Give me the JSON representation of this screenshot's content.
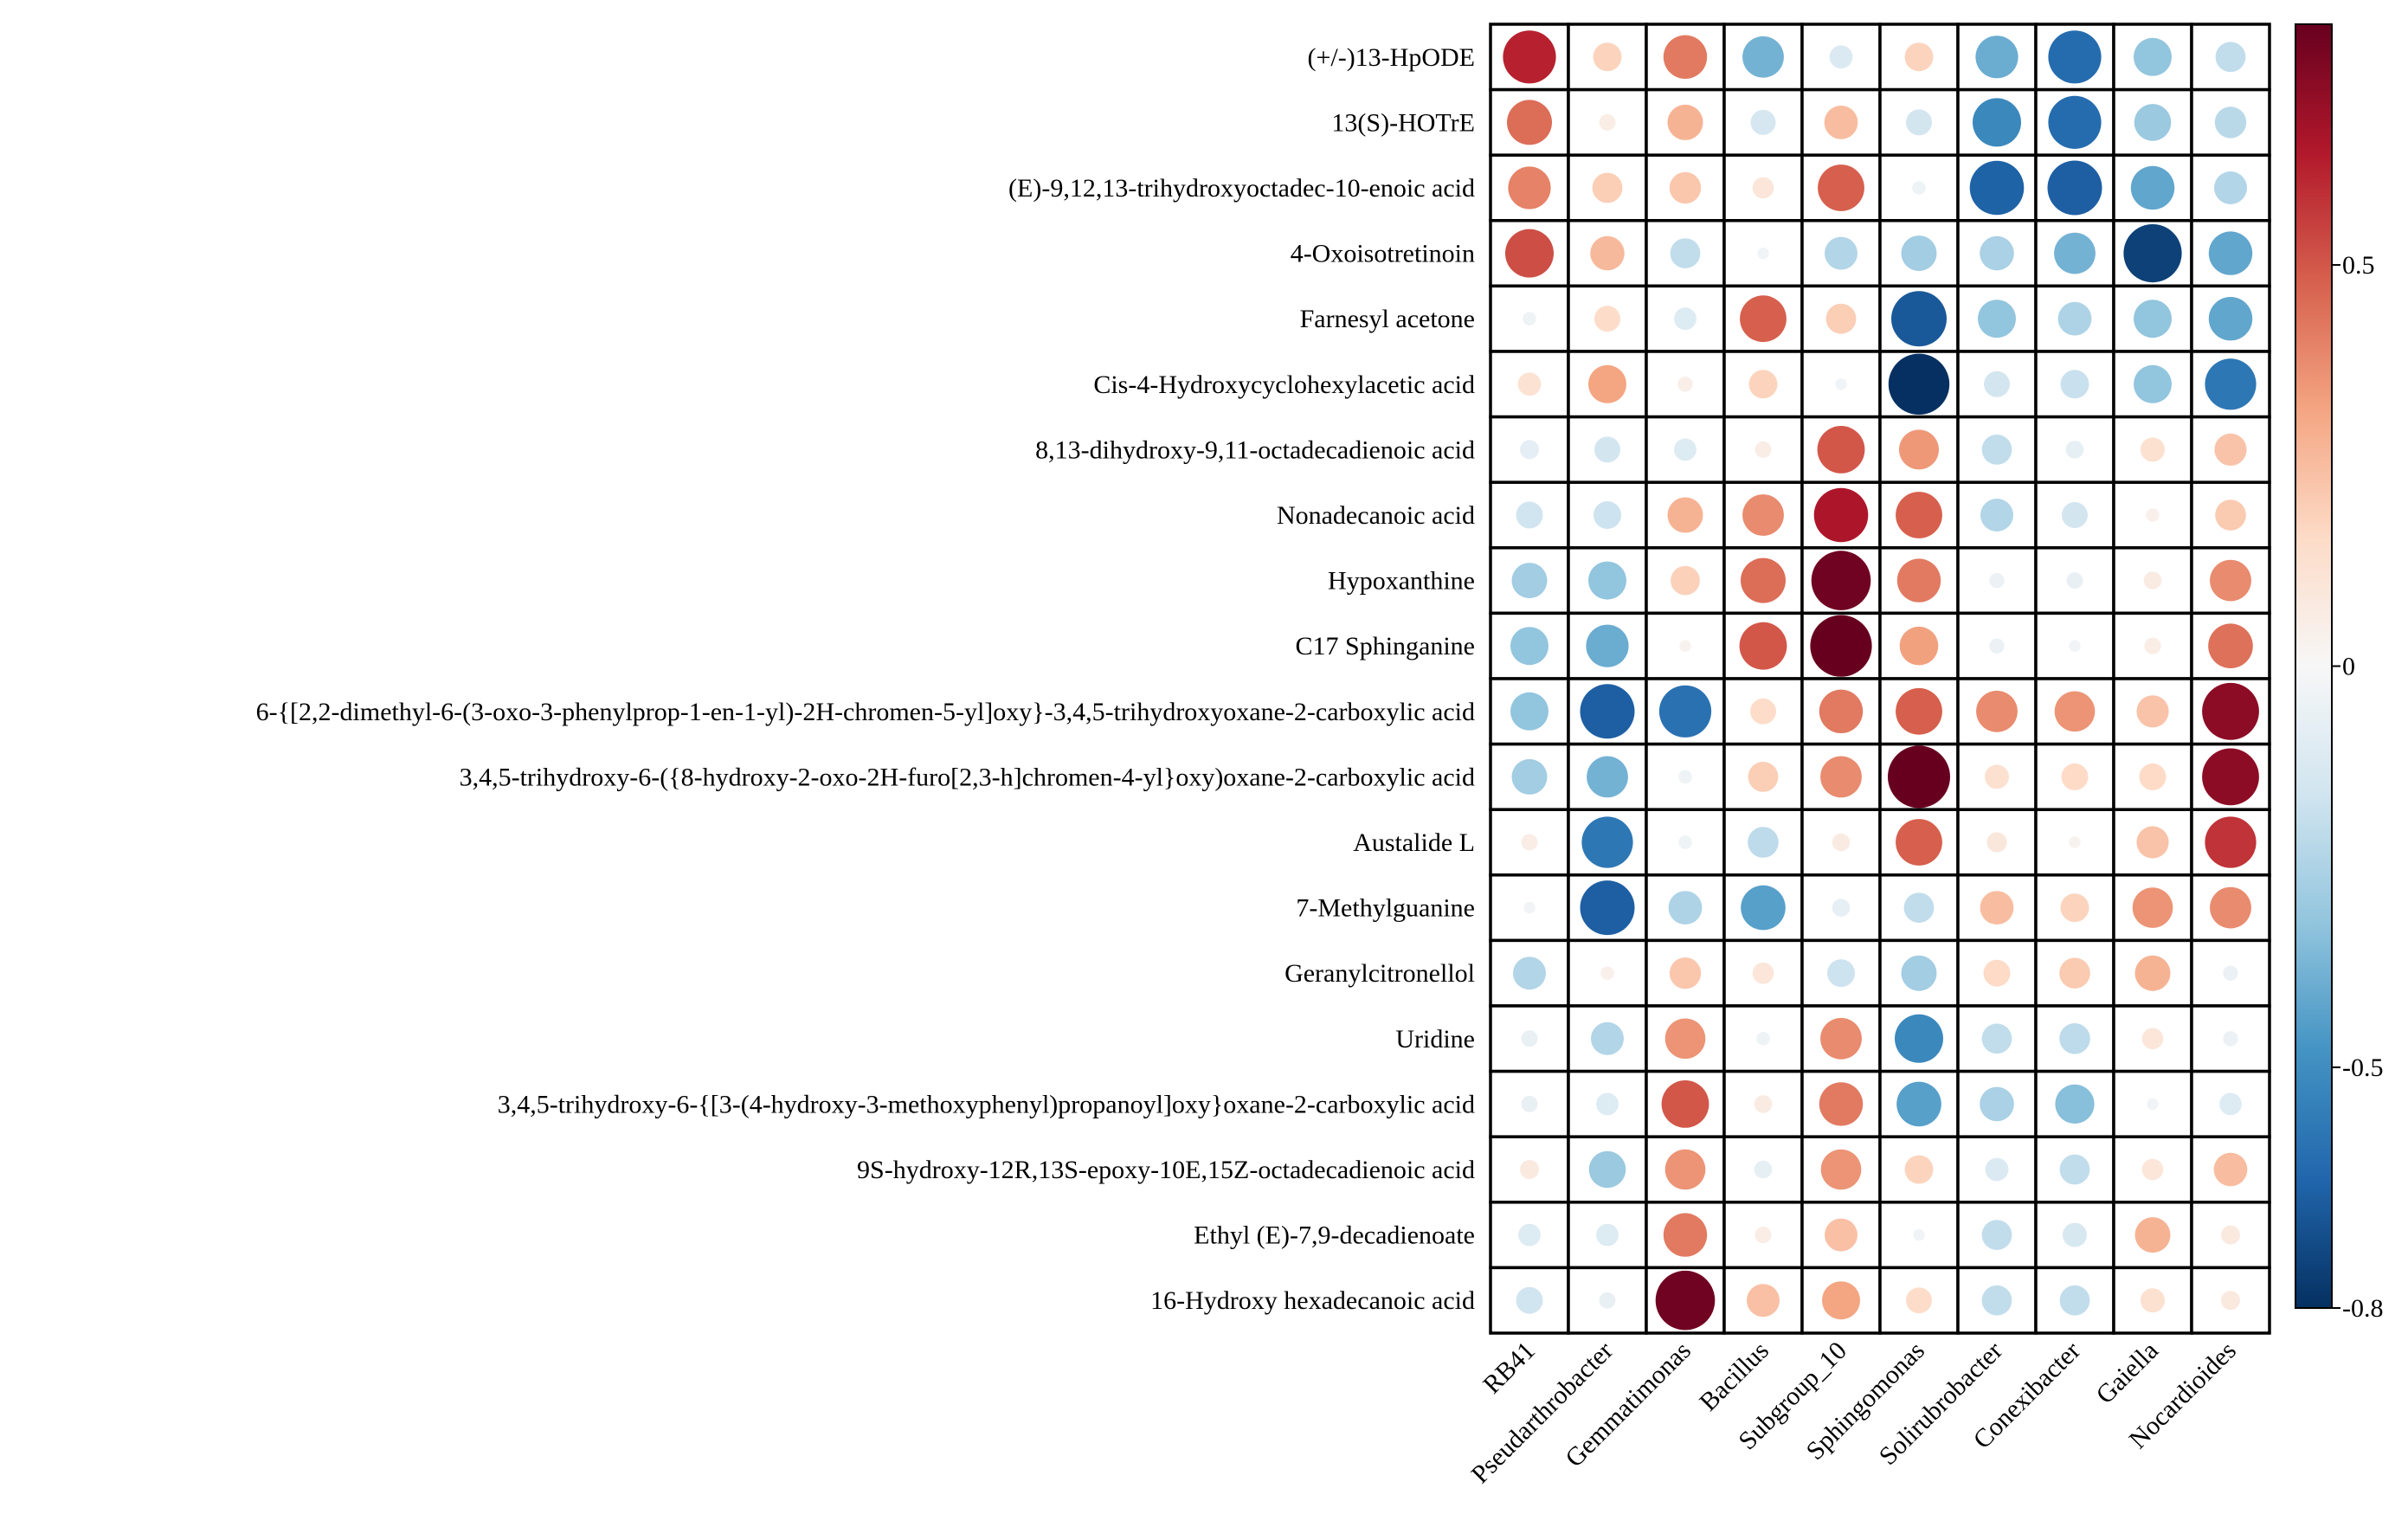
{
  "chart_data": {
    "type": "heatmap",
    "title": "",
    "xlabel": "",
    "ylabel": "",
    "marker": "circle",
    "columns": [
      "RB41",
      "Pseudarthrobacter",
      "Gemmatimonas",
      "Bacillus",
      "Subgroup_10",
      "Sphingomonas",
      "Solirubrobacter",
      "Conexibacter",
      "Gaiella",
      "Nocardioides"
    ],
    "rows": [
      "(+/-)13-HpODE",
      "13(S)-HOTrE",
      "(E)-9,12,13-trihydroxyoctadec-10-enoic acid",
      "4-Oxoisotretinoin",
      "Farnesyl acetone",
      "Cis-4-Hydroxycyclohexylacetic acid",
      "8,13-dihydroxy-9,11-octadecadienoic acid",
      "Nonadecanoic acid",
      "Hypoxanthine",
      "C17 Sphinganine",
      "6-{[2,2-dimethyl-6-(3-oxo-3-phenylprop-1-en-1-yl)-2H-chromen-5-yl]oxy}-3,4,5-trihydroxyoxane-2-carboxylic acid",
      "3,4,5-trihydroxy-6-({8-hydroxy-2-oxo-2H-furo[2,3-h]chromen-4-yl}oxy)oxane-2-carboxylic acid",
      "Austalide L",
      "7-Methylguanine",
      "Geranylcitronellol",
      "Uridine",
      "3,4,5-trihydroxy-6-{[3-(4-hydroxy-3-methoxyphenyl)propanoyl]oxy}oxane-2-carboxylic acid",
      "9S-hydroxy-12R,13S-epoxy-10E,15Z-octadecadienoic acid",
      "Ethyl (E)-7,9-decadienoate",
      "16-Hydroxy hexadecanoic acid"
    ],
    "values": [
      [
        0.62,
        0.18,
        0.42,
        -0.38,
        -0.12,
        0.18,
        -0.4,
        -0.62,
        -0.32,
        -0.2
      ],
      [
        0.45,
        0.06,
        0.28,
        -0.14,
        0.25,
        -0.15,
        -0.52,
        -0.62,
        -0.3,
        -0.22
      ],
      [
        0.4,
        0.2,
        0.22,
        0.1,
        0.48,
        -0.04,
        -0.65,
        -0.66,
        -0.42,
        -0.24
      ],
      [
        0.52,
        0.26,
        -0.2,
        -0.03,
        -0.24,
        -0.28,
        -0.26,
        -0.38,
        -0.75,
        -0.42
      ],
      [
        -0.04,
        0.15,
        -0.11,
        0.48,
        0.2,
        -0.68,
        -0.32,
        -0.25,
        -0.32,
        -0.42
      ],
      [
        0.12,
        0.32,
        0.05,
        0.18,
        -0.03,
        -0.82,
        -0.15,
        -0.18,
        -0.32,
        -0.58
      ],
      [
        -0.08,
        -0.15,
        -0.11,
        0.06,
        0.5,
        0.35,
        -0.2,
        -0.07,
        0.13,
        0.23
      ],
      [
        -0.16,
        -0.17,
        0.28,
        0.38,
        0.65,
        0.48,
        -0.24,
        -0.15,
        0.04,
        0.21
      ],
      [
        -0.28,
        -0.32,
        0.19,
        0.45,
        0.78,
        0.42,
        -0.05,
        -0.06,
        0.07,
        0.38
      ],
      [
        -0.32,
        -0.4,
        0.03,
        0.5,
        0.84,
        0.33,
        -0.05,
        -0.03,
        0.06,
        0.44
      ],
      [
        -0.32,
        -0.66,
        -0.6,
        0.15,
        0.42,
        0.48,
        0.38,
        0.36,
        0.23,
        0.72
      ],
      [
        -0.28,
        -0.38,
        -0.04,
        0.2,
        0.38,
        0.86,
        0.13,
        0.16,
        0.16,
        0.72
      ],
      [
        0.06,
        -0.58,
        -0.04,
        -0.21,
        0.07,
        0.48,
        0.09,
        0.03,
        0.23,
        0.58
      ],
      [
        -0.03,
        -0.66,
        -0.25,
        -0.44,
        -0.07,
        -0.2,
        0.25,
        0.18,
        0.36,
        0.38
      ],
      [
        -0.24,
        0.04,
        0.22,
        0.1,
        -0.17,
        -0.28,
        0.16,
        0.21,
        0.28,
        -0.05
      ],
      [
        -0.06,
        -0.24,
        0.36,
        -0.04,
        0.38,
        -0.52,
        -0.2,
        -0.21,
        0.1,
        -0.05
      ],
      [
        -0.06,
        -0.11,
        0.5,
        0.07,
        0.42,
        -0.44,
        -0.26,
        -0.34,
        -0.03,
        -0.11
      ],
      [
        0.08,
        -0.3,
        0.36,
        -0.07,
        0.36,
        0.18,
        -0.12,
        -0.2,
        0.1,
        0.25
      ],
      [
        -0.11,
        -0.11,
        0.42,
        0.06,
        0.24,
        -0.03,
        -0.2,
        -0.13,
        0.28,
        0.08
      ],
      [
        -0.16,
        -0.06,
        0.78,
        0.24,
        0.32,
        0.15,
        -0.2,
        -0.2,
        0.13,
        0.08
      ]
    ],
    "color_scale": {
      "min": -0.8,
      "max": 0.8,
      "ticks": [
        "0.5",
        "0",
        "-0.5",
        "-0.8"
      ],
      "tick_values": [
        0.5,
        0,
        -0.5,
        -0.8
      ],
      "colors": [
        "#053061",
        "#2166ac",
        "#4393c3",
        "#92c5de",
        "#d1e5f0",
        "#f7f7f7",
        "#fddbc7",
        "#f4a582",
        "#d6604d",
        "#b2182b",
        "#67001f"
      ]
    },
    "legend": "right"
  }
}
